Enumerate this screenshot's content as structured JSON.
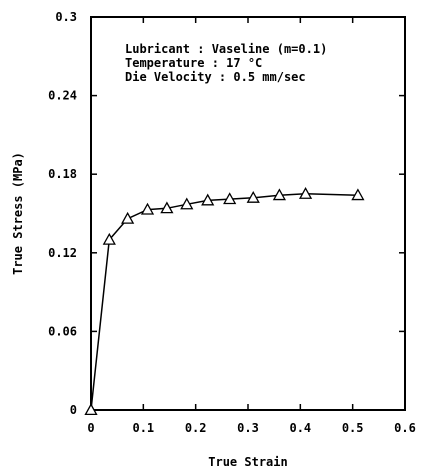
{
  "chart_data": {
    "type": "line",
    "title": "",
    "xlabel": "True Strain",
    "ylabel": "True Stress (MPa)",
    "xlim": [
      0,
      0.6
    ],
    "ylim": [
      0,
      0.3
    ],
    "x_ticks": [
      0,
      0.1,
      0.2,
      0.3,
      0.4,
      0.5,
      0.6
    ],
    "x_tick_labels": [
      "0",
      "0.1",
      "0.2",
      "0.3",
      "0.4",
      "0.5",
      "0.6"
    ],
    "y_ticks": [
      0,
      0.06,
      0.12,
      0.18,
      0.24,
      0.3
    ],
    "y_tick_labels": [
      "0",
      "0.06",
      "0.12",
      "0.18",
      "0.24",
      "0.3"
    ],
    "grid": false,
    "legend": "none",
    "annotations": [
      "Lubricant    : Vaseline (m=0.1)",
      "Temperature  : 17 °C",
      "Die Velocity : 0.5 mm/sec"
    ],
    "series": [
      {
        "marker": "open-triangle",
        "color": "#000000",
        "x": [
          0,
          0.035,
          0.07,
          0.108,
          0.145,
          0.183,
          0.223,
          0.265,
          0.31,
          0.36,
          0.41,
          0.51
        ],
        "y": [
          0,
          0.13,
          0.146,
          0.153,
          0.154,
          0.157,
          0.16,
          0.161,
          0.162,
          0.164,
          0.165,
          0.164
        ]
      }
    ]
  }
}
